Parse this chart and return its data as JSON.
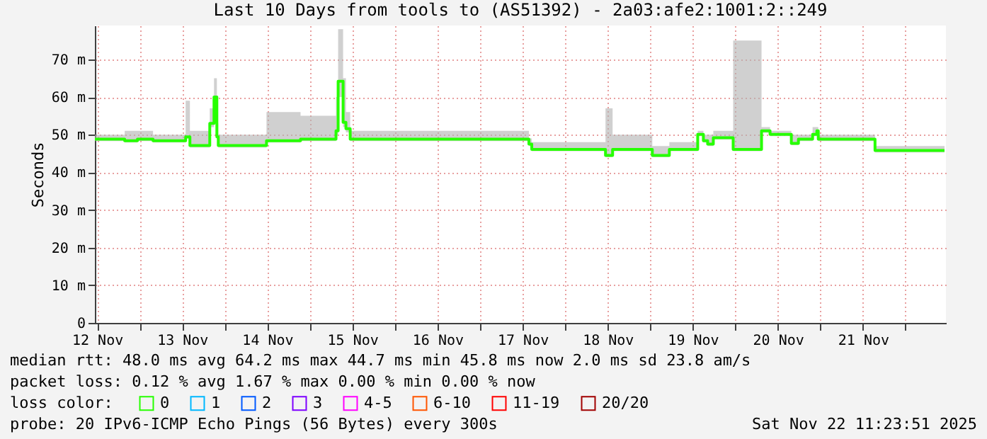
{
  "chart_data": {
    "type": "step",
    "title": "Last 10 Days from tools to (AS51392) - 2a03:afe2:1001:2::249",
    "ylabel": "Seconds",
    "legend_title": "loss color:",
    "legend": "bottom",
    "grid": true,
    "x": [
      "2025-11-12T11:23",
      "2025-11-12T19:47",
      "2025-11-12T23:23",
      "2025-11-13T03:47",
      "2025-11-13T12:59",
      "2025-11-13T14:11",
      "2025-11-13T19:47",
      "2025-11-13T20:59",
      "2025-11-13T21:47",
      "2025-11-13T22:11",
      "2025-11-14T11:47",
      "2025-11-14T21:23",
      "2025-11-15T07:23",
      "2025-11-15T07:59",
      "2025-11-15T09:23",
      "2025-11-15T10:11",
      "2025-11-15T11:23",
      "2025-11-17T13:47",
      "2025-11-17T14:35",
      "2025-11-18T11:23",
      "2025-11-18T13:23",
      "2025-11-19T00:35",
      "2025-11-19T05:23",
      "2025-11-19T13:23",
      "2025-11-19T14:59",
      "2025-11-19T16:11",
      "2025-11-19T17:47",
      "2025-11-19T23:23",
      "2025-11-20T07:23",
      "2025-11-20T09:47",
      "2025-11-20T15:47",
      "2025-11-20T17:47",
      "2025-11-20T21:47",
      "2025-11-20T22:59",
      "2025-11-20T23:23",
      "2025-11-21T15:23",
      "2025-11-22T10:59"
    ],
    "series": [
      {
        "name": "0",
        "color": "#26ff00",
        "values": [
          48.8,
          48.4,
          48.8,
          48.4,
          49.4,
          47.1,
          53.0,
          60.0,
          49.4,
          47.1,
          48.4,
          48.8,
          51.0,
          64.2,
          53.3,
          51.6,
          48.8,
          47.5,
          46.1,
          44.5,
          46.1,
          44.5,
          46.1,
          50.1,
          48.4,
          47.5,
          49.2,
          46.1,
          51.0,
          50.1,
          47.7,
          48.8,
          50.1,
          51.0,
          48.8,
          45.8,
          45.8
        ],
        "lower": [
          48.3,
          47.9,
          48.3,
          47.9,
          48.9,
          46.6,
          52.0,
          55.0,
          48.9,
          46.6,
          47.9,
          48.3,
          50.0,
          60.0,
          52.0,
          50.6,
          48.3,
          47.0,
          45.6,
          44.0,
          45.6,
          44.0,
          45.6,
          49.6,
          47.9,
          47.0,
          48.7,
          45.6,
          50.5,
          49.6,
          47.2,
          48.3,
          49.6,
          50.5,
          48.3,
          45.3,
          45.3
        ],
        "upper": [
          50,
          51,
          51,
          50,
          59,
          51,
          57,
          65,
          53,
          50,
          56,
          55,
          60,
          78,
          65,
          56,
          51,
          49,
          48,
          57,
          50,
          47,
          48,
          51,
          50,
          50,
          51,
          75,
          52,
          51,
          50,
          50,
          52,
          52,
          50,
          47,
          47
        ]
      },
      {
        "name": "1",
        "color": "#00b8ff",
        "values": [
          null,
          null,
          null,
          null,
          null,
          null,
          null,
          null,
          null,
          null,
          null,
          null,
          null,
          null,
          null,
          null,
          null,
          null,
          null,
          null,
          null,
          null,
          null,
          null,
          null,
          null,
          null,
          null,
          null,
          null,
          null,
          null,
          null,
          null,
          null,
          null,
          null
        ]
      },
      {
        "name": "2",
        "color": "#0059ff",
        "values": [
          null,
          null,
          null,
          null,
          null,
          null,
          null,
          null,
          null,
          null,
          null,
          null,
          null,
          null,
          null,
          null,
          null,
          null,
          null,
          null,
          null,
          null,
          null,
          null,
          null,
          null,
          null,
          null,
          null,
          null,
          null,
          null,
          null,
          null,
          null,
          null,
          null
        ]
      },
      {
        "name": "3",
        "color": "#7e00ff",
        "values": [
          null,
          null,
          null,
          null,
          null,
          null,
          null,
          null,
          null,
          null,
          null,
          null,
          null,
          null,
          null,
          null,
          null,
          null,
          null,
          null,
          null,
          null,
          null,
          null,
          null,
          null,
          null,
          null,
          null,
          null,
          null,
          null,
          null,
          null,
          null,
          null,
          null
        ]
      },
      {
        "name": "4-5",
        "color": "#ff00ff",
        "values": [
          null,
          null,
          null,
          null,
          null,
          null,
          null,
          null,
          null,
          null,
          null,
          null,
          null,
          null,
          null,
          null,
          null,
          null,
          null,
          null,
          null,
          null,
          null,
          null,
          null,
          null,
          null,
          null,
          null,
          null,
          null,
          null,
          null,
          null,
          null,
          null,
          null
        ]
      },
      {
        "name": "6-10",
        "color": "#ff5500",
        "values": [
          null,
          null,
          null,
          null,
          null,
          null,
          null,
          null,
          null,
          null,
          null,
          null,
          null,
          null,
          null,
          null,
          null,
          null,
          null,
          null,
          null,
          null,
          null,
          null,
          null,
          null,
          null,
          null,
          null,
          null,
          null,
          null,
          null,
          null,
          null,
          null,
          null
        ]
      },
      {
        "name": "11-19",
        "color": "#ff0000",
        "values": [
          null,
          null,
          null,
          null,
          null,
          null,
          null,
          null,
          null,
          null,
          null,
          null,
          null,
          null,
          null,
          null,
          null,
          null,
          null,
          null,
          null,
          null,
          null,
          null,
          null,
          null,
          null,
          null,
          null,
          null,
          null,
          null,
          null,
          null,
          null,
          null,
          null
        ]
      },
      {
        "name": "20/20",
        "color": "#a10000",
        "values": [
          null,
          null,
          null,
          null,
          null,
          null,
          null,
          null,
          null,
          null,
          null,
          null,
          null,
          null,
          null,
          null,
          null,
          null,
          null,
          null,
          null,
          null,
          null,
          null,
          null,
          null,
          null,
          null,
          null,
          null,
          null,
          null,
          null,
          null,
          null,
          null,
          null
        ]
      }
    ],
    "xlim": [
      "2025-11-12T11:23",
      "2025-11-22T11:23"
    ],
    "xticks": [
      {
        "value": "2025-11-12T12:00",
        "label": "12 Nov"
      },
      {
        "value": "2025-11-13T00:00",
        "label": null
      },
      {
        "value": "2025-11-13T12:00",
        "label": "13 Nov"
      },
      {
        "value": "2025-11-14T00:00",
        "label": null
      },
      {
        "value": "2025-11-14T12:00",
        "label": "14 Nov"
      },
      {
        "value": "2025-11-15T00:00",
        "label": null
      },
      {
        "value": "2025-11-15T12:00",
        "label": "15 Nov"
      },
      {
        "value": "2025-11-16T00:00",
        "label": null
      },
      {
        "value": "2025-11-16T12:00",
        "label": "16 Nov"
      },
      {
        "value": "2025-11-17T00:00",
        "label": null
      },
      {
        "value": "2025-11-17T12:00",
        "label": "17 Nov"
      },
      {
        "value": "2025-11-18T00:00",
        "label": null
      },
      {
        "value": "2025-11-18T12:00",
        "label": "18 Nov"
      },
      {
        "value": "2025-11-19T00:00",
        "label": null
      },
      {
        "value": "2025-11-19T12:00",
        "label": "19 Nov"
      },
      {
        "value": "2025-11-20T00:00",
        "label": null
      },
      {
        "value": "2025-11-20T12:00",
        "label": "20 Nov"
      },
      {
        "value": "2025-11-21T00:00",
        "label": null
      },
      {
        "value": "2025-11-21T12:00",
        "label": "21 Nov"
      },
      {
        "value": "2025-11-22T00:00",
        "label": null
      }
    ],
    "ylim": [
      0,
      79
    ],
    "yticks": [
      0,
      {
        "value": 10,
        "label": "10 m"
      },
      {
        "value": 20,
        "label": "20 m"
      },
      {
        "value": 30,
        "label": "30 m"
      },
      {
        "value": 40,
        "label": "40 m"
      },
      {
        "value": 50,
        "label": "50 m"
      },
      {
        "value": 60,
        "label": "60 m"
      },
      {
        "value": 70,
        "label": "70 m"
      }
    ],
    "annotations": [
      "median rtt: 48.0 ms avg 64.2 ms max 44.7 ms min 45.8 ms now 2.0 ms sd 23.8 am/s",
      "packet loss: 0.12 % avg 1.67 % max 0.00 % min 0.00 % now",
      "probe: 20 IPv6-ICMP Echo Pings (56 Bytes) every 300s",
      "Sat Nov 22 11:23:51 2025"
    ]
  }
}
